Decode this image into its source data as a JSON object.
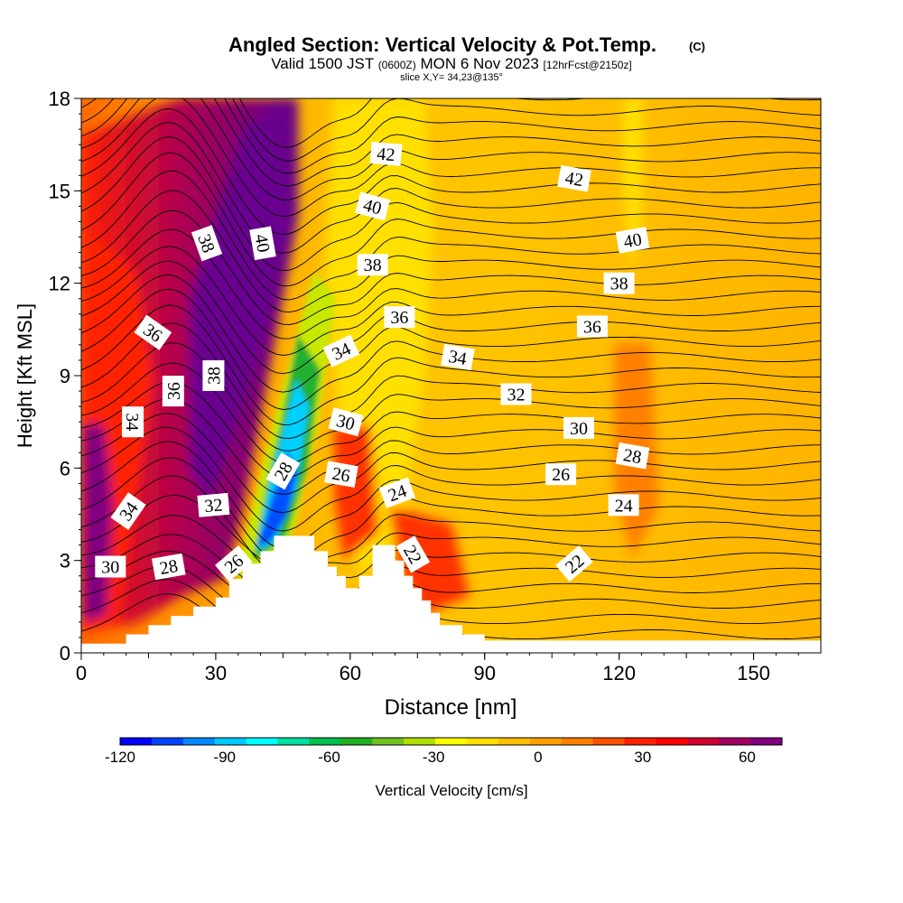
{
  "chart_data": {
    "type": "heatmap",
    "title": "Angled Section: Vertical Velocity & Pot.Temp.",
    "title_units": "(C)",
    "subtitle_prefix": "Valid 1500 JST",
    "subtitle_utc": "(0600Z)",
    "subtitle_date": "MON 6 Nov 2023",
    "subtitle_fcst": "[12hrFcst@2150z]",
    "slice_label": "slice X,Y= 34,23@135°",
    "xlabel": "Distance [nm]",
    "ylabel": "Height [Kft MSL]",
    "xlim": [
      0,
      165
    ],
    "ylim": [
      0,
      18
    ],
    "x_ticks": [
      "0",
      "30",
      "60",
      "90",
      "120",
      "150"
    ],
    "y_ticks": [
      "0",
      "3",
      "6",
      "9",
      "12",
      "15",
      "18"
    ],
    "colorbar": {
      "label": "Vertical Velocity [cm/s]",
      "range": [
        -120,
        70
      ],
      "tick_labels": [
        "-120",
        "-90",
        "-60",
        "-30",
        "0",
        "30",
        "60"
      ],
      "colors": [
        "#0000ff",
        "#0044ff",
        "#0088ff",
        "#00c8ff",
        "#00ffff",
        "#00e0a0",
        "#00c050",
        "#20b020",
        "#70c020",
        "#b0e000",
        "#ffff00",
        "#ffe000",
        "#ffc000",
        "#ffa000",
        "#ff8000",
        "#ff5000",
        "#ff2000",
        "#ff0000",
        "#d00030",
        "#a00060",
        "#800080"
      ]
    },
    "terrain_kft": [
      [
        0,
        0.3
      ],
      [
        10,
        0.3
      ],
      [
        10,
        0.6
      ],
      [
        15,
        0.6
      ],
      [
        15,
        0.9
      ],
      [
        20,
        0.9
      ],
      [
        20,
        1.2
      ],
      [
        25,
        1.2
      ],
      [
        25,
        1.5
      ],
      [
        30,
        1.5
      ],
      [
        30,
        1.8
      ],
      [
        33,
        1.8
      ],
      [
        33,
        2.4
      ],
      [
        36,
        2.4
      ],
      [
        36,
        2.9
      ],
      [
        40,
        2.9
      ],
      [
        40,
        3.3
      ],
      [
        43,
        3.3
      ],
      [
        43,
        3.8
      ],
      [
        52,
        3.8
      ],
      [
        52,
        3.3
      ],
      [
        55,
        3.3
      ],
      [
        55,
        2.8
      ],
      [
        57,
        2.8
      ],
      [
        57,
        2.5
      ],
      [
        59,
        2.5
      ],
      [
        59,
        2.1
      ],
      [
        62,
        2.1
      ],
      [
        62,
        2.5
      ],
      [
        65,
        2.5
      ],
      [
        65,
        3.5
      ],
      [
        70,
        3.5
      ],
      [
        70,
        3.0
      ],
      [
        72,
        3.0
      ],
      [
        72,
        2.5
      ],
      [
        74,
        2.5
      ],
      [
        74,
        2.1
      ],
      [
        76,
        2.1
      ],
      [
        76,
        1.7
      ],
      [
        78,
        1.7
      ],
      [
        78,
        1.3
      ],
      [
        80,
        1.3
      ],
      [
        80,
        0.9
      ],
      [
        85,
        0.9
      ],
      [
        85,
        0.6
      ],
      [
        90,
        0.6
      ],
      [
        90,
        0.4
      ],
      [
        165,
        0.4
      ]
    ],
    "theta_contour_labels": [
      {
        "text": "42",
        "x": 68,
        "y": 16.2,
        "rot": 5
      },
      {
        "text": "42",
        "x": 110,
        "y": 15.4,
        "rot": 10
      },
      {
        "text": "40",
        "x": 65,
        "y": 14.5,
        "rot": 15
      },
      {
        "text": "40",
        "x": 123,
        "y": 13.4,
        "rot": -10
      },
      {
        "text": "38",
        "x": 28,
        "y": 13.3,
        "rot": 70
      },
      {
        "text": "40",
        "x": 40.5,
        "y": 13.3,
        "rot": 80
      },
      {
        "text": "38",
        "x": 65,
        "y": 12.6,
        "rot": 0
      },
      {
        "text": "38",
        "x": 120,
        "y": 12.0,
        "rot": 0
      },
      {
        "text": "36",
        "x": 71,
        "y": 10.9,
        "rot": 0
      },
      {
        "text": "36",
        "x": 114,
        "y": 10.6,
        "rot": 0
      },
      {
        "text": "36",
        "x": 16,
        "y": 10.4,
        "rot": 35
      },
      {
        "text": "34",
        "x": 58,
        "y": 9.8,
        "rot": -25
      },
      {
        "text": "34",
        "x": 84,
        "y": 9.6,
        "rot": 10
      },
      {
        "text": "38",
        "x": 29.5,
        "y": 9.0,
        "rot": -90
      },
      {
        "text": "36",
        "x": 20.5,
        "y": 8.5,
        "rot": -90
      },
      {
        "text": "32",
        "x": 97,
        "y": 8.4,
        "rot": 0
      },
      {
        "text": "34",
        "x": 11.5,
        "y": 7.5,
        "rot": 90
      },
      {
        "text": "30",
        "x": 59,
        "y": 7.5,
        "rot": 15
      },
      {
        "text": "30",
        "x": 111,
        "y": 7.3,
        "rot": 0
      },
      {
        "text": "28",
        "x": 45,
        "y": 5.9,
        "rot": -60
      },
      {
        "text": "28",
        "x": 123,
        "y": 6.4,
        "rot": 10
      },
      {
        "text": "26",
        "x": 58,
        "y": 5.8,
        "rot": 10
      },
      {
        "text": "26",
        "x": 107,
        "y": 5.8,
        "rot": 0
      },
      {
        "text": "24",
        "x": 70.5,
        "y": 5.2,
        "rot": -20
      },
      {
        "text": "24",
        "x": 121,
        "y": 4.8,
        "rot": 0
      },
      {
        "text": "32",
        "x": 29.5,
        "y": 4.8,
        "rot": -5
      },
      {
        "text": "34",
        "x": 10.5,
        "y": 4.6,
        "rot": -55
      },
      {
        "text": "22",
        "x": 74,
        "y": 3.2,
        "rot": 60
      },
      {
        "text": "22",
        "x": 110,
        "y": 2.9,
        "rot": -40
      },
      {
        "text": "30",
        "x": 6.5,
        "y": 2.8,
        "rot": 0
      },
      {
        "text": "28",
        "x": 19.5,
        "y": 2.8,
        "rot": -10
      },
      {
        "text": "26",
        "x": 34,
        "y": 2.9,
        "rot": -40
      }
    ]
  }
}
